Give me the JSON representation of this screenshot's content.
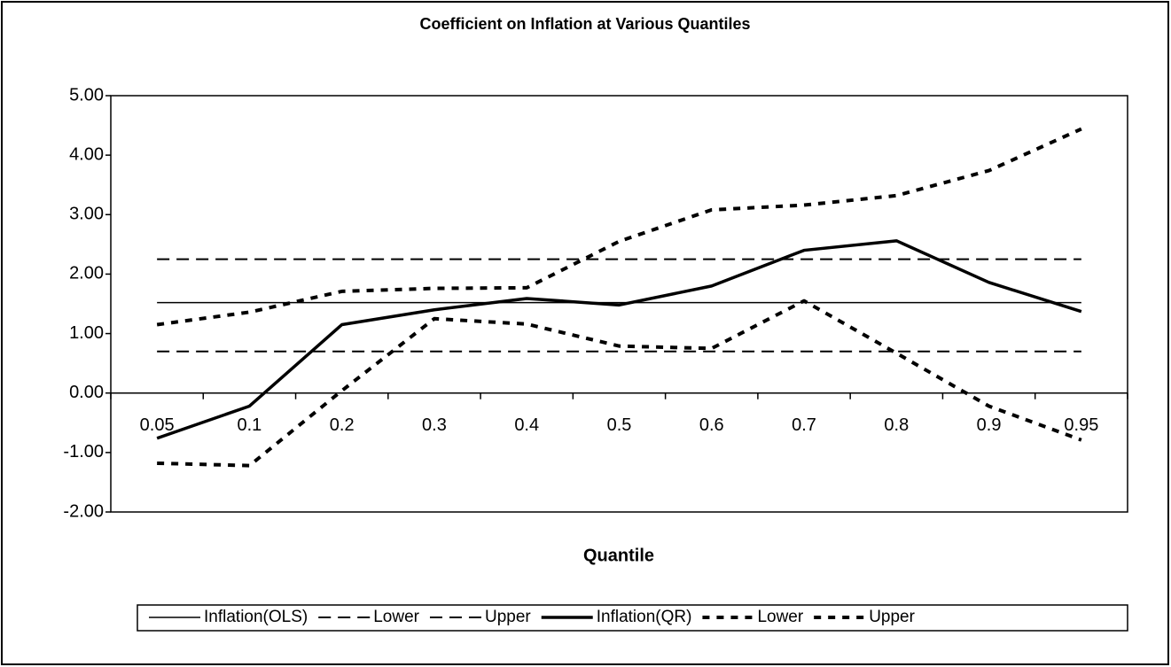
{
  "chart_data": {
    "type": "line",
    "title": "Coefficient on Inflation at Various Quantiles",
    "x_label": "Quantile",
    "categories": [
      "0.05",
      "0.1",
      "0.2",
      "0.3",
      "0.4",
      "0.5",
      "0.6",
      "0.7",
      "0.8",
      "0.9",
      "0.95"
    ],
    "ylim": [
      -2,
      5
    ],
    "yticks": [
      {
        "value": -2,
        "label": "-2.00"
      },
      {
        "value": -1,
        "label": "-1.00"
      },
      {
        "value": 0,
        "label": "0.00"
      },
      {
        "value": 1,
        "label": "1.00"
      },
      {
        "value": 2,
        "label": "2.00"
      },
      {
        "value": 3,
        "label": "3.00"
      },
      {
        "value": 4,
        "label": "4.00"
      },
      {
        "value": 5,
        "label": "5.00"
      }
    ],
    "grid": false,
    "legend": "bottom",
    "series": [
      {
        "name": "Inflation(OLS)",
        "color": "#000000",
        "dash": "solid",
        "width": 1.5,
        "values": [
          1.52,
          1.52,
          1.52,
          1.52,
          1.52,
          1.52,
          1.52,
          1.52,
          1.52,
          1.52,
          1.52
        ]
      },
      {
        "name": "Lower",
        "color": "#000000",
        "dash": "dashed",
        "width": 2,
        "values": [
          0.7,
          0.7,
          0.7,
          0.7,
          0.7,
          0.7,
          0.7,
          0.7,
          0.7,
          0.7,
          0.7
        ]
      },
      {
        "name": "Upper",
        "color": "#000000",
        "dash": "dashed",
        "width": 2,
        "values": [
          2.25,
          2.25,
          2.25,
          2.25,
          2.25,
          2.25,
          2.25,
          2.25,
          2.25,
          2.25,
          2.25
        ]
      },
      {
        "name": "Inflation(QR)",
        "color": "#000000",
        "dash": "solid",
        "width": 3.5,
        "values": [
          -0.76,
          -0.22,
          1.15,
          1.4,
          1.59,
          1.48,
          1.8,
          2.4,
          2.56,
          1.86,
          1.37
        ]
      },
      {
        "name": "Lower",
        "color": "#000000",
        "dash": "dotted",
        "width": 4,
        "values": [
          -1.18,
          -1.22,
          0.04,
          1.25,
          1.16,
          0.79,
          0.75,
          1.55,
          0.67,
          -0.22,
          -0.79
        ]
      },
      {
        "name": "Upper",
        "color": "#000000",
        "dash": "dotted",
        "width": 4,
        "values": [
          1.15,
          1.36,
          1.71,
          1.76,
          1.77,
          2.55,
          3.08,
          3.16,
          3.32,
          3.74,
          4.44
        ]
      }
    ]
  }
}
